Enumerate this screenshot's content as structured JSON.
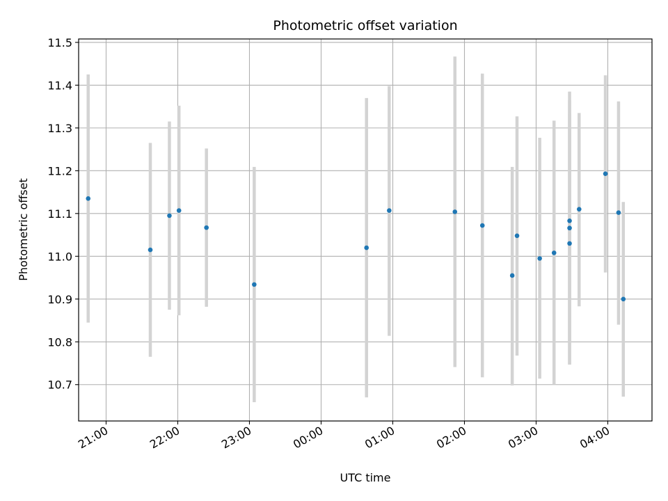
{
  "chart_data": {
    "type": "scatter",
    "title": "Photometric offset variation",
    "xlabel": "UTC time",
    "ylabel": "Photometric offset",
    "x_unit": "UTC clock time",
    "x_ticks": [
      "21:00",
      "22:00",
      "23:00",
      "00:00",
      "01:00",
      "02:00",
      "03:00",
      "04:00"
    ],
    "x_range": [
      "20:37",
      "04:37"
    ],
    "y_ticks": [
      "10.7",
      "10.8",
      "10.9",
      "11.0",
      "11.1",
      "11.2",
      "11.3",
      "11.4",
      "11.5"
    ],
    "ylim": [
      10.615,
      11.508
    ],
    "grid": true,
    "series": [
      {
        "marker_color": "#1f77b4",
        "errorbar_color": "#d3d3d3",
        "points": [
          {
            "x": "20:45",
            "y": 11.135,
            "low": 10.845,
            "high": 11.425
          },
          {
            "x": "21:37",
            "y": 11.015,
            "low": 10.765,
            "high": 11.265
          },
          {
            "x": "21:53",
            "y": 11.095,
            "low": 10.875,
            "high": 11.315
          },
          {
            "x": "22:01",
            "y": 11.107,
            "low": 10.862,
            "high": 11.352
          },
          {
            "x": "22:24",
            "y": 11.067,
            "low": 10.882,
            "high": 11.252
          },
          {
            "x": "23:04",
            "y": 10.934,
            "low": 10.659,
            "high": 11.209
          },
          {
            "x": "00:38",
            "y": 11.02,
            "low": 10.67,
            "high": 11.37
          },
          {
            "x": "00:57",
            "y": 11.107,
            "low": 10.814,
            "high": 11.398
          },
          {
            "x": "01:52",
            "y": 11.104,
            "low": 10.741,
            "high": 11.467
          },
          {
            "x": "02:15",
            "y": 11.072,
            "low": 10.717,
            "high": 11.427
          },
          {
            "x": "02:40",
            "y": 10.955,
            "low": 10.698,
            "high": 11.209
          },
          {
            "x": "02:44",
            "y": 11.048,
            "low": 10.768,
            "high": 11.327
          },
          {
            "x": "03:03",
            "y": 10.995,
            "low": 10.714,
            "high": 11.277
          },
          {
            "x": "03:15",
            "y": 11.008,
            "low": 10.7,
            "high": 11.317
          },
          {
            "x": "03:28",
            "y": 11.03,
            "low": 10.747,
            "high": 11.333
          },
          {
            "x": "03:28",
            "y": 11.066,
            "low": 10.747,
            "high": 11.385
          },
          {
            "x": "03:28",
            "y": 11.083,
            "low": 10.801,
            "high": 11.365
          },
          {
            "x": "03:36",
            "y": 11.11,
            "low": 10.883,
            "high": 11.335
          },
          {
            "x": "03:58",
            "y": 11.193,
            "low": 10.962,
            "high": 11.423
          },
          {
            "x": "04:09",
            "y": 11.102,
            "low": 10.84,
            "high": 11.362
          },
          {
            "x": "04:13",
            "y": 10.9,
            "low": 10.672,
            "high": 11.127
          }
        ]
      }
    ]
  }
}
